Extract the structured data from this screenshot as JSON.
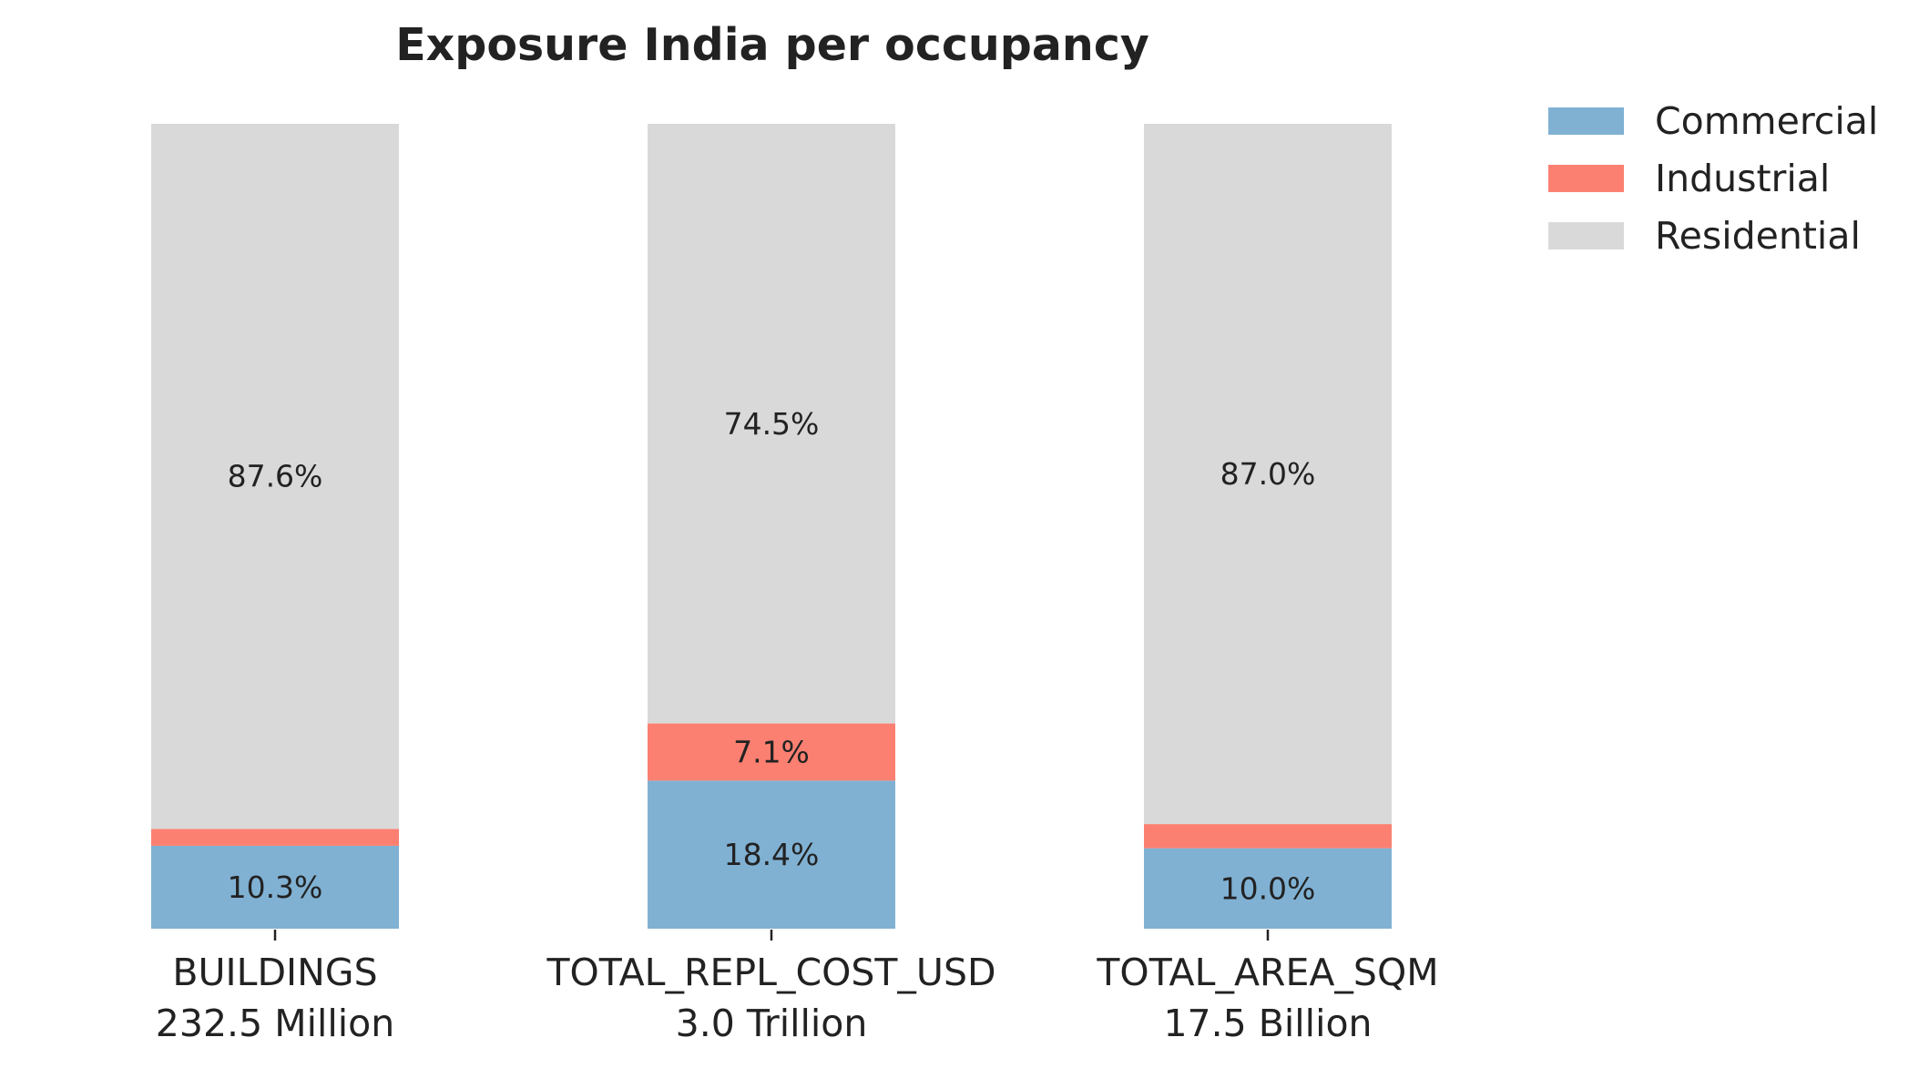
{
  "chart_data": {
    "type": "bar",
    "stacked": true,
    "normalized": true,
    "title": "Exposure India per occupancy",
    "xlabel": "",
    "ylabel": "",
    "ylim": [
      0,
      100
    ],
    "grid": false,
    "legend_position": "top-right, outside plot",
    "categories": [
      "BUILDINGS",
      "TOTAL_REPL_COST_USD",
      "TOTAL_AREA_SQM"
    ],
    "category_totals": [
      "232.5 Million",
      "3.0 Trillion",
      "17.5 Billion"
    ],
    "series": [
      {
        "name": "Commercial",
        "color": "#80b1d3",
        "values": [
          10.3,
          18.4,
          10.0
        ],
        "labels": [
          "10.3%",
          "18.4%",
          "10.0%"
        ]
      },
      {
        "name": "Industrial",
        "color": "#fb8072",
        "values": [
          2.1,
          7.1,
          3.0
        ],
        "labels": [
          "",
          "7.1%",
          ""
        ]
      },
      {
        "name": "Residential",
        "color": "#d9d9d9",
        "values": [
          87.6,
          74.5,
          87.0
        ],
        "labels": [
          "87.6%",
          "74.5%",
          "87.0%"
        ]
      }
    ]
  }
}
